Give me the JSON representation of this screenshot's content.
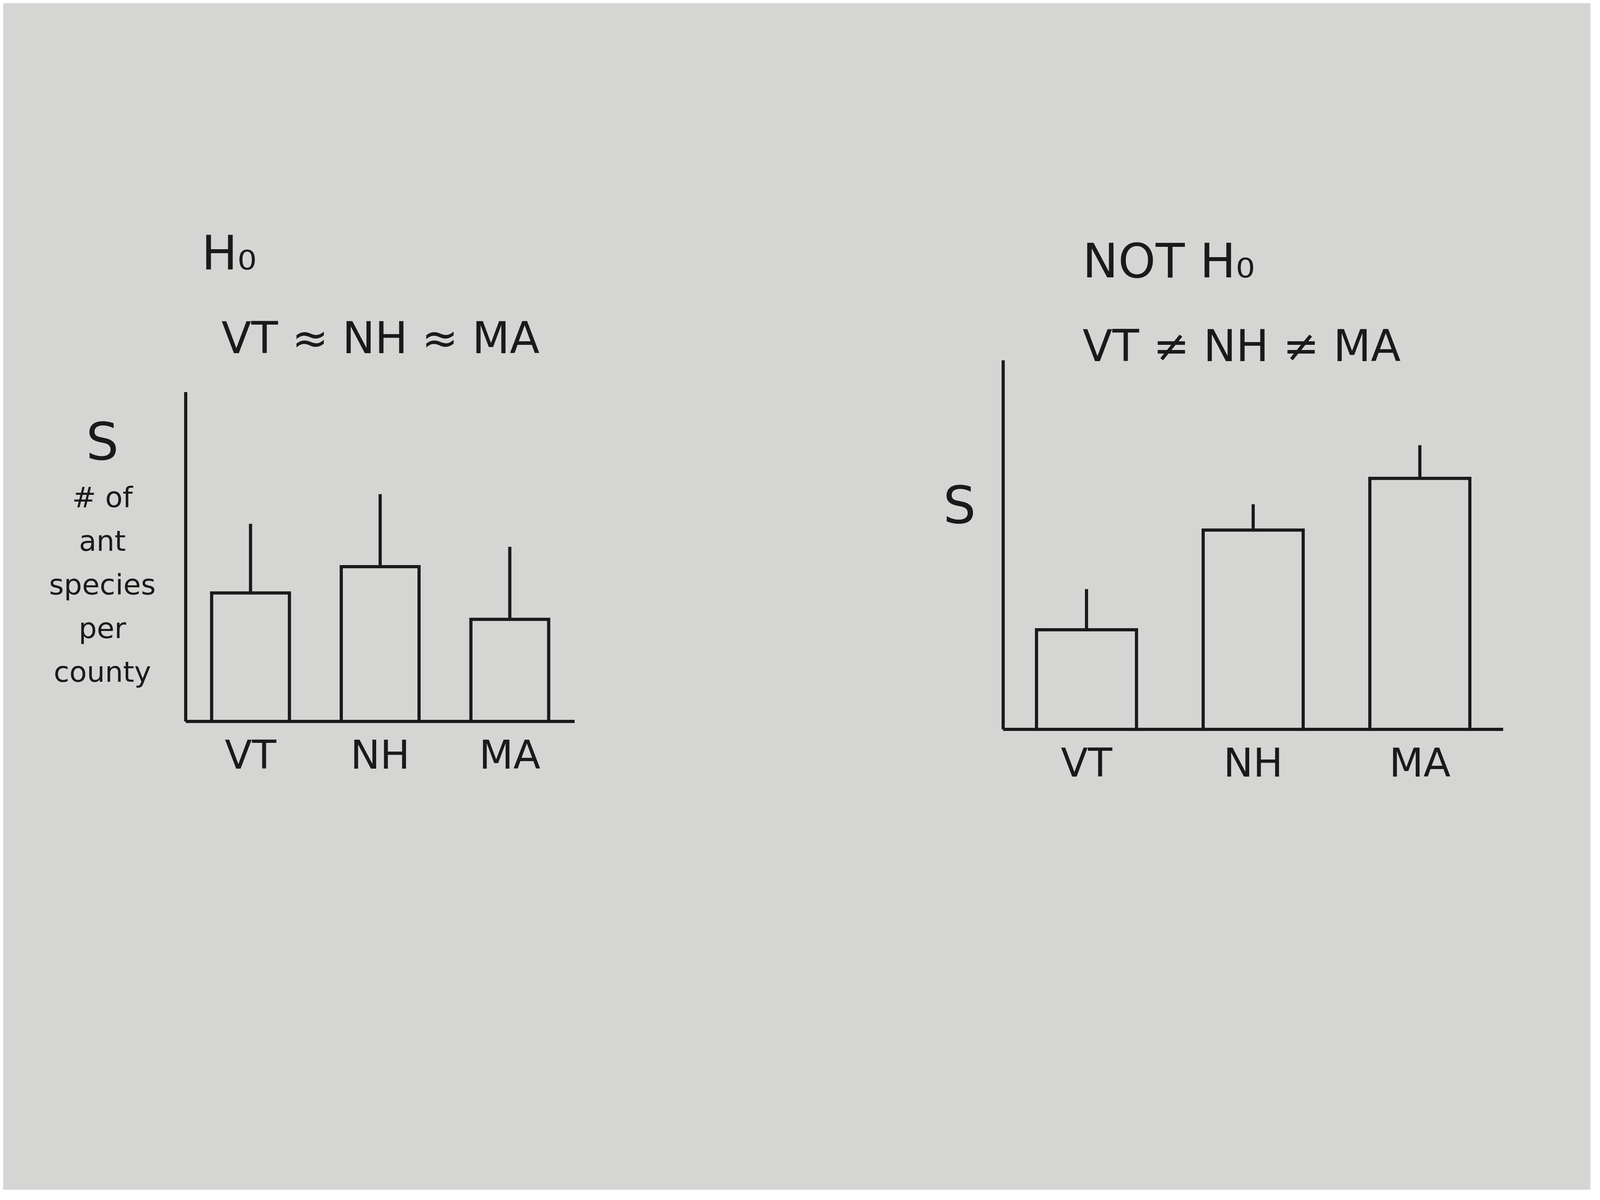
{
  "chart_data": [
    {
      "type": "bar",
      "title": "H₀",
      "subtitle": "VT ≈ NH ≈ MA",
      "ylabel": [
        "S",
        "# of",
        "ant",
        "species",
        "per",
        "county"
      ],
      "categories": [
        "VT",
        "NH",
        "MA"
      ],
      "values": [
        39,
        47,
        31
      ],
      "errors": [
        21,
        22,
        22
      ],
      "color": "#1a1a1a",
      "ylim": [
        0,
        100
      ],
      "tick_labels": "x",
      "grid": false
    },
    {
      "type": "bar",
      "title": "NOT H₀",
      "subtitle": "VT ≠ NH ≠ MA",
      "ylabel": [
        "S"
      ],
      "categories": [
        "VT",
        "NH",
        "MA"
      ],
      "values": [
        27,
        54,
        68
      ],
      "errors": [
        11,
        7,
        9
      ],
      "color": "#1a1a1a",
      "ylim": [
        0,
        100
      ],
      "tick_labels": "x",
      "grid": false
    }
  ]
}
